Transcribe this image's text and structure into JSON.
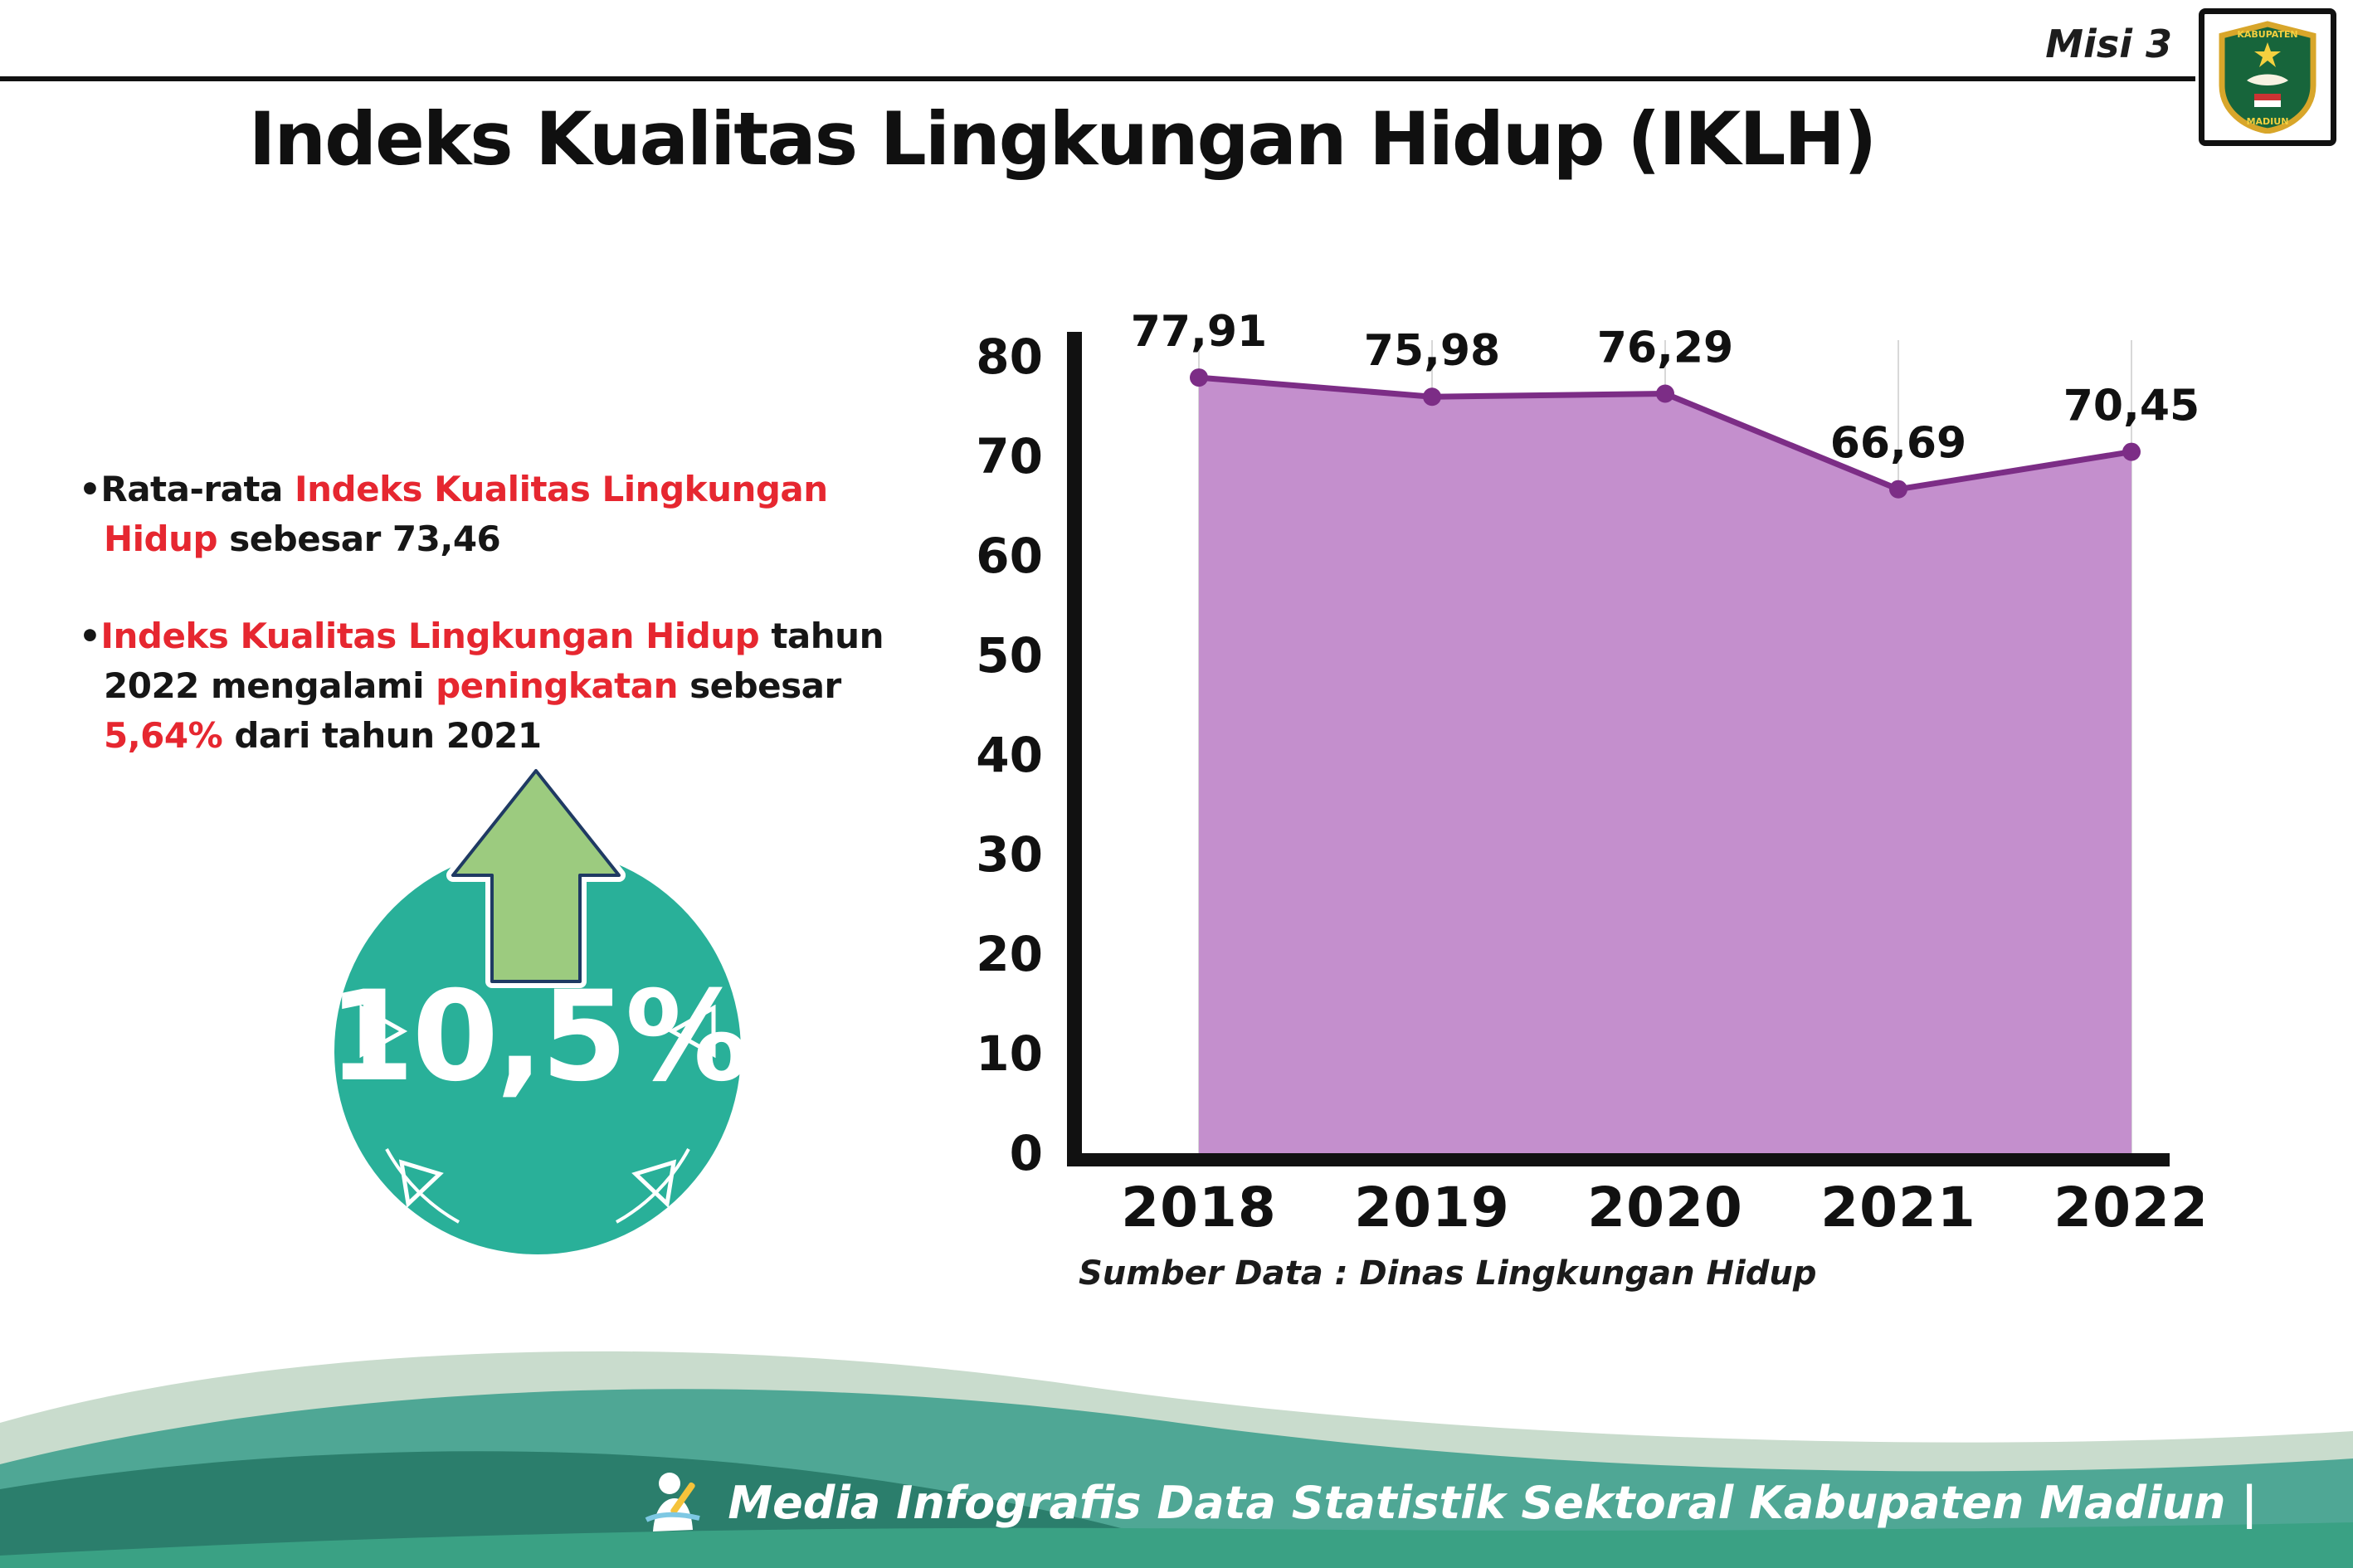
{
  "header": {
    "misi": "Misi 3",
    "title": "Indeks Kualitas Lingkungan Hidup (IKLH)",
    "logo": {
      "line1": "KABUPATEN",
      "line2": "MADIUN"
    }
  },
  "bullets": [
    {
      "segments": [
        {
          "t": "Rata-rata ",
          "c": "black"
        },
        {
          "t": "Indeks Kualitas Lingkungan Hidup",
          "c": "red"
        },
        {
          "t": " sebesar 73,46",
          "c": "black"
        }
      ]
    },
    {
      "segments": [
        {
          "t": "Indeks Kualitas Lingkungan Hidup",
          "c": "red"
        },
        {
          "t": " tahun 2022 mengalami ",
          "c": "black"
        },
        {
          "t": "peningkatan",
          "c": "red"
        },
        {
          "t": " sebesar ",
          "c": "black"
        },
        {
          "t": "5,64%",
          "c": "red"
        },
        {
          "t": " dari tahun 2021",
          "c": "black"
        }
      ]
    }
  ],
  "badge": {
    "value": "10,5%"
  },
  "chart_data": {
    "type": "area",
    "categories": [
      "2018",
      "2019",
      "2020",
      "2021",
      "2022"
    ],
    "values": [
      77.91,
      75.98,
      76.29,
      66.69,
      70.45
    ],
    "labels": [
      "77,91",
      "75,98",
      "76,29",
      "66,69",
      "70,45"
    ],
    "ylim": [
      0,
      80
    ],
    "yticks": [
      0,
      10,
      20,
      30,
      40,
      50,
      60,
      70,
      80
    ],
    "xlabel": "",
    "ylabel": "",
    "grid": true,
    "legend": "none",
    "area_color": "#c48fcd",
    "line_color": "#7c2d86",
    "source": "Sumber Data : Dinas Lingkungan Hidup"
  },
  "footer": {
    "text": "Media Infografis Data Statistik Sektoral Kabupaten Madiun |"
  },
  "colors": {
    "red": "#e62730",
    "teal": "#29b099",
    "arrow_green": "#9ccb7f",
    "arrow_outline": "#1f3a63",
    "axis_black": "#111111"
  }
}
